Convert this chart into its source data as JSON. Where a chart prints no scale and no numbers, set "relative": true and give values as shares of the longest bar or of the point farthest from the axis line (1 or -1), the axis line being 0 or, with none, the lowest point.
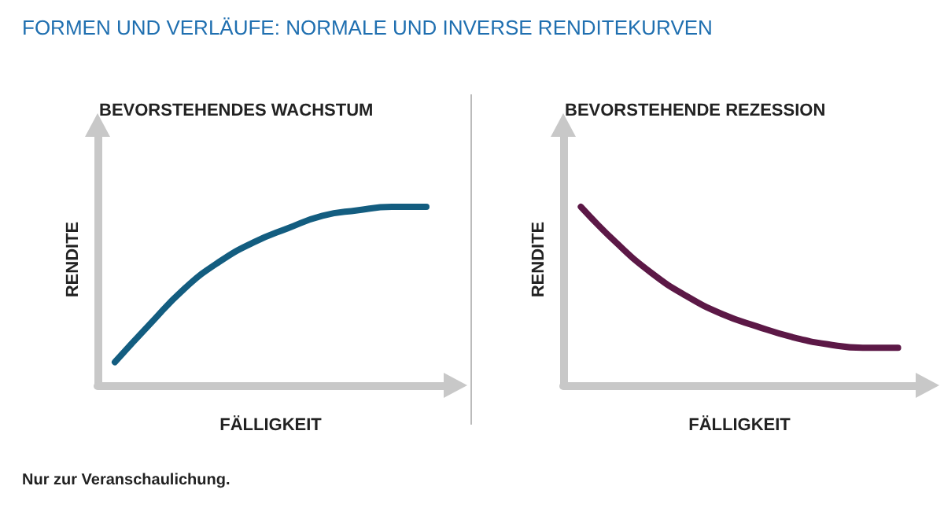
{
  "chart_data": [
    {
      "type": "line",
      "title": "FORMEN UND VERLÄUFE: NORMALE UND INVERSE RENDITEKURVEN",
      "subtitle": "BEVORSTEHENDES WACHSTUM",
      "xlabel": "FÄLLIGKEIT",
      "ylabel": "RENDITE",
      "relative": true,
      "categories": [
        null,
        null,
        null,
        null,
        null,
        null,
        null,
        null,
        null,
        null
      ],
      "series": [
        {
          "color": "#135d80",
          "values": [
            0.13,
            0.34,
            0.54,
            0.69,
            0.8,
            0.88,
            0.95,
            0.98,
            1,
            1
          ]
        }
      ],
      "marker": "none",
      "grid": false,
      "annotations": [
        "Nur zur Veranschaulichung."
      ]
    },
    {
      "type": "line",
      "title": "BEVORSTEHENDE REZESSION",
      "xlabel": "FÄLLIGKEIT",
      "ylabel": "RENDITE",
      "relative": true,
      "categories": [
        null,
        null,
        null,
        null,
        null,
        null,
        null,
        null,
        null,
        null
      ],
      "series": [
        {
          "color": "#5c1846",
          "values": [
            1,
            0.8,
            0.63,
            0.5,
            0.4,
            0.33,
            0.27,
            0.23,
            0.21,
            0.21
          ]
        }
      ],
      "marker": "none",
      "grid": false
    }
  ]
}
